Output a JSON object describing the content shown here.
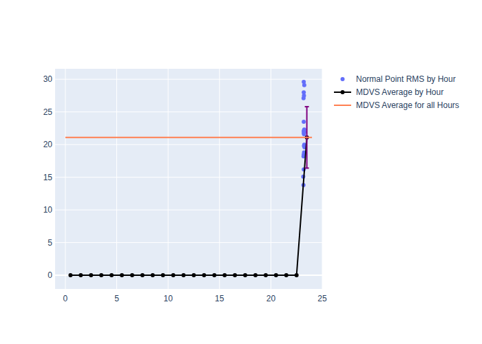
{
  "chart_data": {
    "type": "line",
    "xlim": [
      -1,
      25
    ],
    "ylim": [
      -2.1,
      31.6
    ],
    "xticks": [
      0,
      5,
      10,
      15,
      20,
      25
    ],
    "yticks": [
      0,
      5,
      10,
      15,
      20,
      25,
      30
    ],
    "grid": true,
    "legend": "right",
    "series": [
      {
        "name": "Normal Point RMS by Hour",
        "type": "scatter",
        "color": "#636efa",
        "marker": "circle",
        "x": [
          23.2,
          23.25,
          23.2,
          23.22,
          23.18,
          23.2,
          23.25,
          23.2,
          23.27,
          23.22,
          23.2,
          23.25,
          23.22,
          23.27,
          23.23,
          23.2,
          23.18,
          23.2,
          23.15,
          23.17
        ],
        "values": [
          29.6,
          29.1,
          28.0,
          27.5,
          27.1,
          23.5,
          22.3,
          22.1,
          21.9,
          21.6,
          21.8,
          20.0,
          19.8,
          19.6,
          18.8,
          18.5,
          18.2,
          16.2,
          15.1,
          13.8
        ]
      },
      {
        "name": "MDVS Average by Hour",
        "type": "line",
        "color": "#000000",
        "marker": "circle",
        "x": [
          0.5,
          1.5,
          2.5,
          3.5,
          4.5,
          5.5,
          6.5,
          7.5,
          8.5,
          9.5,
          10.5,
          11.5,
          12.5,
          13.5,
          14.5,
          15.5,
          16.5,
          17.5,
          18.5,
          19.5,
          20.5,
          21.5,
          22.5,
          23.5
        ],
        "values": [
          0,
          0,
          0,
          0,
          0,
          0,
          0,
          0,
          0,
          0,
          0,
          0,
          0,
          0,
          0,
          0,
          0,
          0,
          0,
          0,
          0,
          0,
          0,
          21.1
        ],
        "error": [
          null,
          null,
          null,
          null,
          null,
          null,
          null,
          null,
          null,
          null,
          null,
          null,
          null,
          null,
          null,
          null,
          null,
          null,
          null,
          null,
          null,
          null,
          null,
          4.7
        ]
      },
      {
        "name": "MDVS Average for all Hours",
        "type": "line",
        "color": "#ff7f50",
        "marker": "none",
        "x": [
          0,
          24
        ],
        "values": [
          21.1,
          21.1
        ]
      }
    ]
  }
}
